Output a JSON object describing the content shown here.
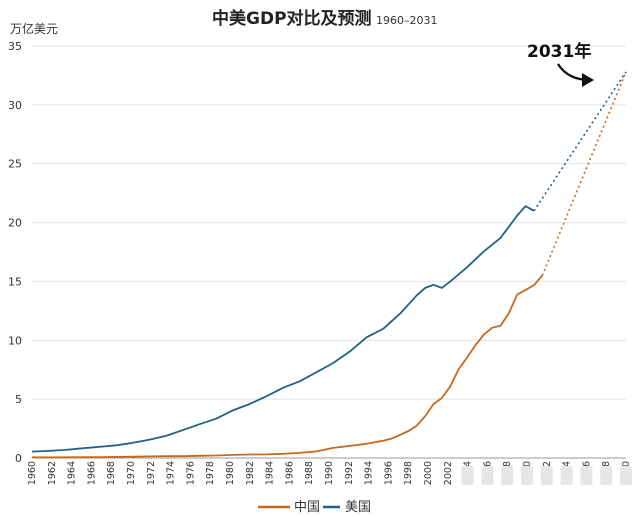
{
  "chart_data": {
    "type": "line",
    "title": "中美GDP对比及预测",
    "subtitle": "1960–2031",
    "ylabel": "万亿美元",
    "ylim": [
      0,
      35
    ],
    "yticks": [
      0,
      5,
      10,
      15,
      20,
      25,
      30,
      35
    ],
    "grid": true,
    "legend_position": "bottom",
    "x_tick_labels": [
      "1960",
      "1962",
      "1964",
      "1966",
      "1968",
      "1970",
      "1972",
      "1974",
      "1976",
      "1978",
      "1980",
      "1982",
      "1984",
      "1986",
      "1988",
      "1990",
      "1992",
      "1994",
      "1996",
      "1998",
      "2000",
      "2002",
      "4",
      "6",
      "8",
      "0",
      "2",
      "4",
      "6",
      "8",
      "0"
    ],
    "annotation": {
      "text": "2031年",
      "x": 2031,
      "y": 32.8
    },
    "series": [
      {
        "name": "中国",
        "color": "#c8691e",
        "x": [
          1960,
          1962,
          1964,
          1966,
          1968,
          1970,
          1972,
          1974,
          1976,
          1978,
          1980,
          1982,
          1984,
          1986,
          1988,
          1990,
          1992,
          1994,
          1996,
          1998,
          2000,
          2002,
          2003,
          2004,
          2005,
          2006,
          2007,
          2008,
          2009,
          2010,
          2011,
          2012,
          2013,
          2014,
          2015,
          2016,
          2017,
          2018,
          2019,
          2020,
          2021
        ],
        "values": [
          0.06,
          0.05,
          0.06,
          0.07,
          0.07,
          0.09,
          0.11,
          0.14,
          0.15,
          0.15,
          0.19,
          0.21,
          0.26,
          0.3,
          0.31,
          0.36,
          0.43,
          0.56,
          0.86,
          1.03,
          1.21,
          1.47,
          1.66,
          1.96,
          2.29,
          2.75,
          3.55,
          4.59,
          5.1,
          6.09,
          7.55,
          8.53,
          9.57,
          10.48,
          11.06,
          11.23,
          12.31,
          13.89,
          14.28,
          14.69,
          15.5
        ],
        "projection": {
          "x": [
            2021,
            2031
          ],
          "values": [
            15.5,
            32.8
          ]
        }
      },
      {
        "name": "美国",
        "color": "#1f6287",
        "x": [
          1960,
          1962,
          1964,
          1966,
          1968,
          1970,
          1972,
          1974,
          1976,
          1978,
          1980,
          1982,
          1984,
          1986,
          1988,
          1990,
          1992,
          1994,
          1996,
          1998,
          2000,
          2002,
          2004,
          2006,
          2007,
          2008,
          2009,
          2010,
          2012,
          2014,
          2016,
          2018,
          2019,
          2020
        ],
        "values": [
          0.54,
          0.6,
          0.69,
          0.82,
          0.94,
          1.07,
          1.28,
          1.55,
          1.88,
          2.36,
          2.86,
          3.34,
          4.04,
          4.58,
          5.24,
          5.96,
          6.52,
          7.29,
          8.07,
          9.06,
          10.25,
          10.98,
          12.27,
          13.82,
          14.45,
          14.71,
          14.45,
          15.0,
          16.2,
          17.55,
          18.7,
          20.6,
          21.4,
          21.0
        ],
        "projection": {
          "x": [
            2020,
            2031
          ],
          "values": [
            21.0,
            32.8
          ]
        }
      }
    ]
  }
}
